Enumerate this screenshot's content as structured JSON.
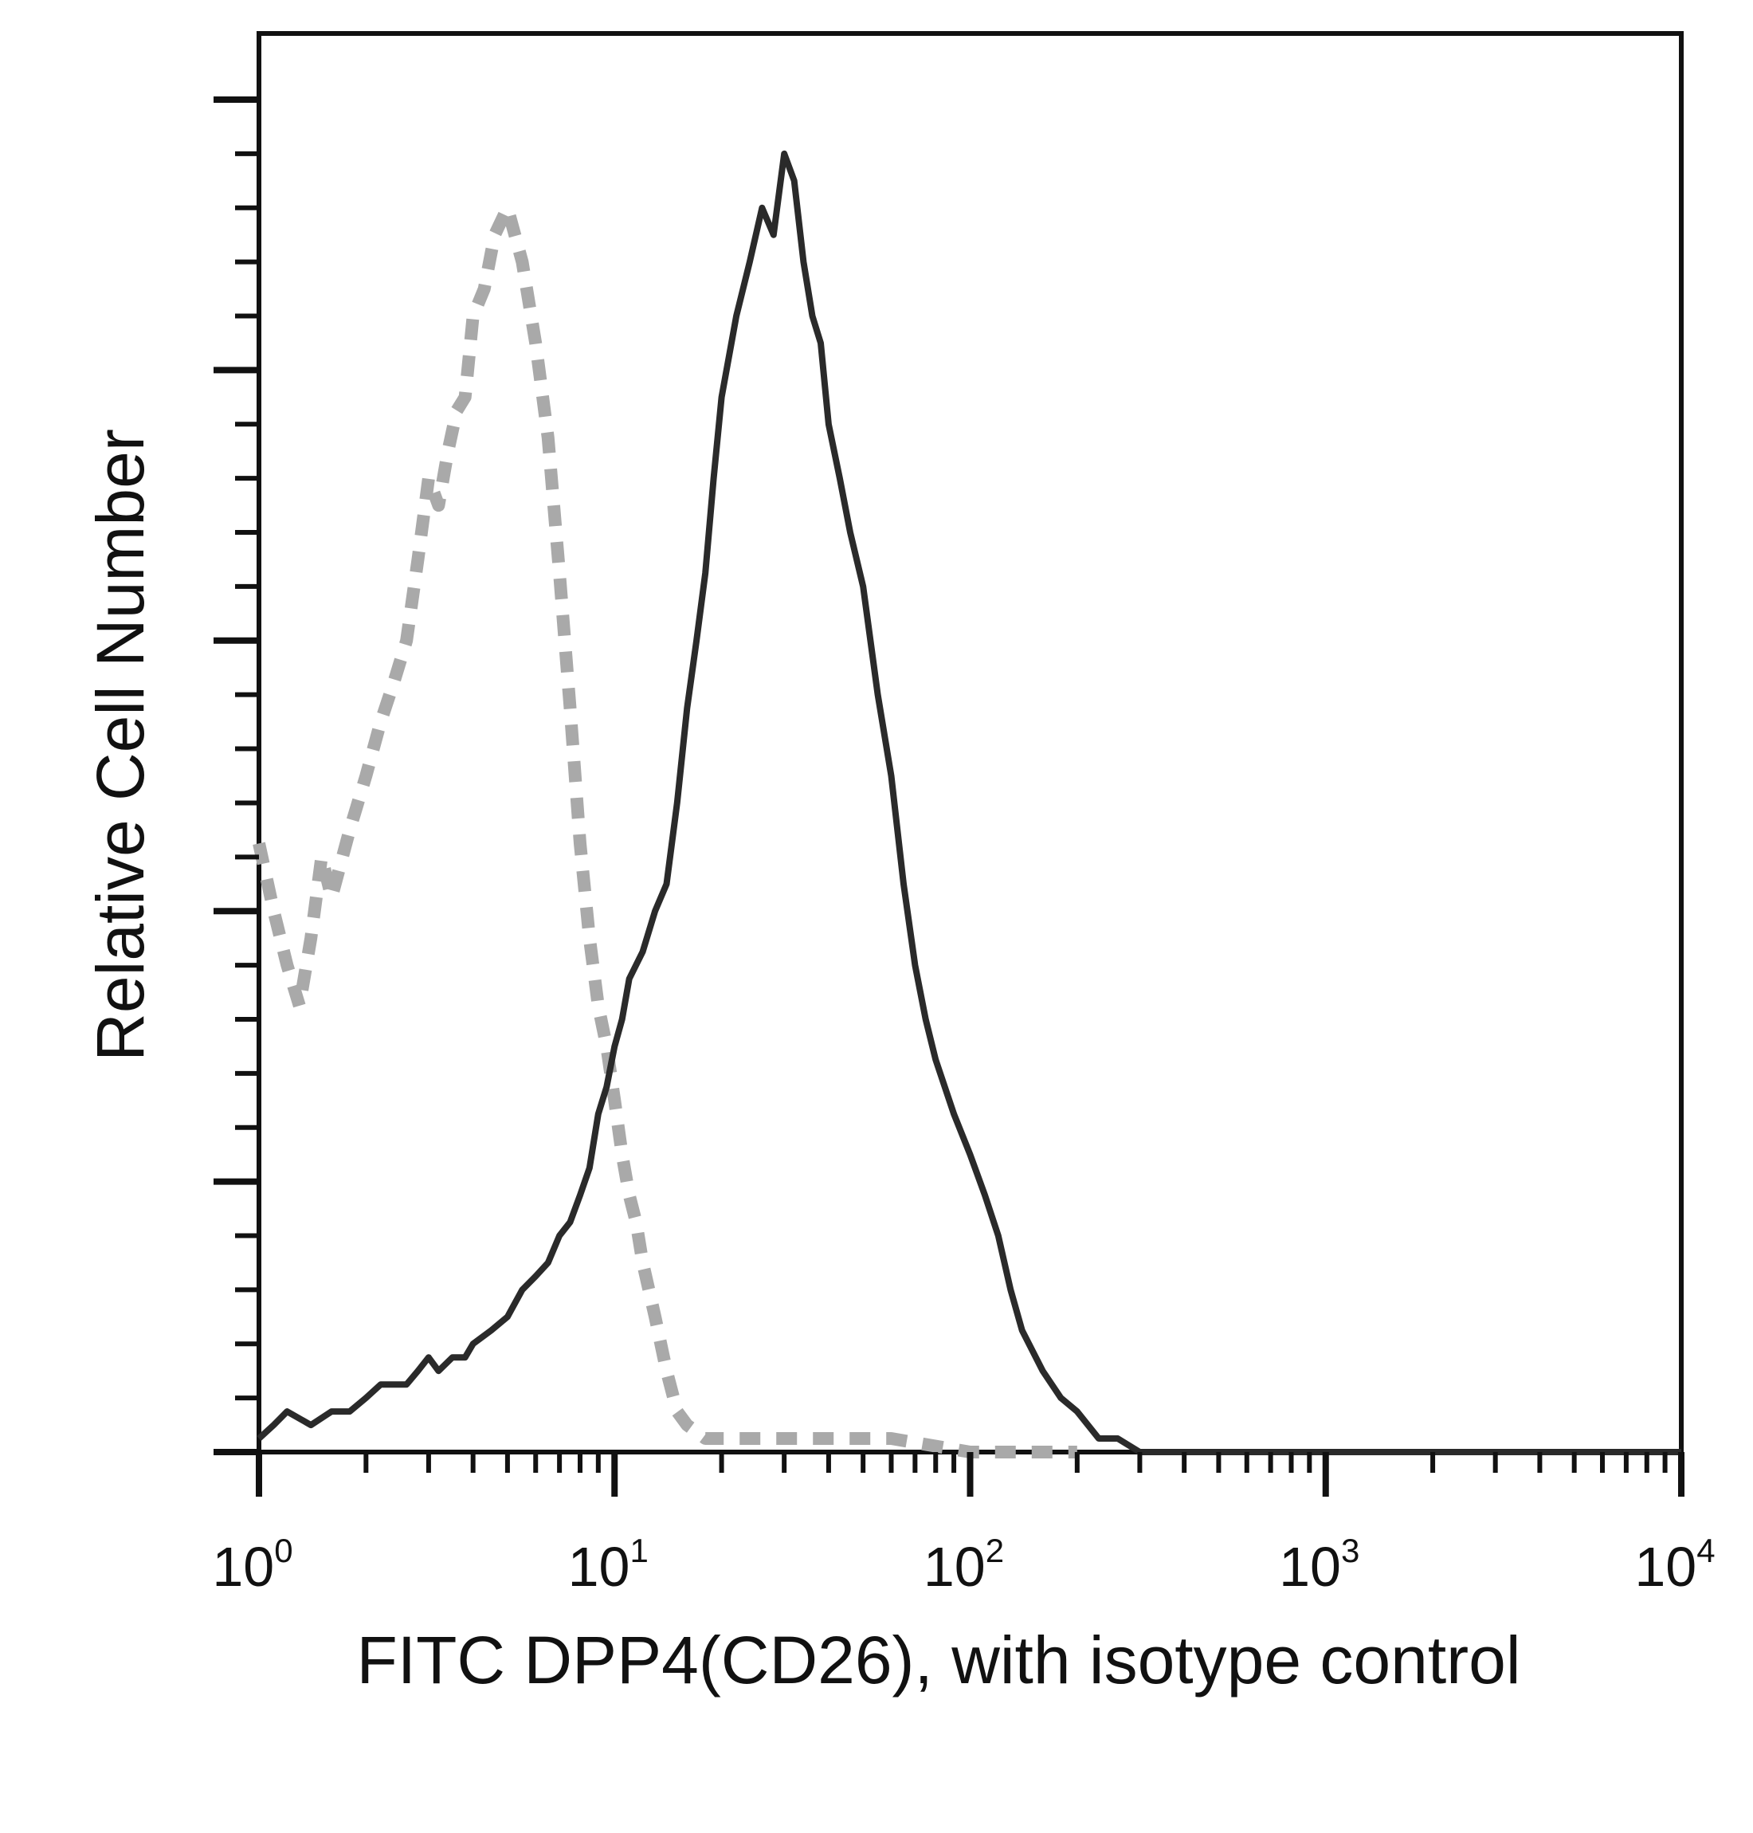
{
  "chart_data": {
    "type": "histogram",
    "x_scale": "log",
    "xlim": [
      1,
      10000
    ],
    "ylim": [
      0,
      1
    ],
    "xlabel": "FITC DPP4(CD26), with isotype control",
    "ylabel": "Relative Cell Number",
    "x_ticks": [
      {
        "value": 1,
        "base": "10",
        "exp": "0"
      },
      {
        "value": 10,
        "base": "10",
        "exp": "1"
      },
      {
        "value": 100,
        "base": "10",
        "exp": "2"
      },
      {
        "value": 1000,
        "base": "10",
        "exp": "3"
      },
      {
        "value": 10000,
        "base": "10",
        "exp": "4"
      }
    ],
    "y_ticks_major": [
      0,
      0.2,
      0.4,
      0.6,
      0.8,
      1.0
    ],
    "y_ticks_minor_per_major": 4,
    "grid": false,
    "legend": "none",
    "series": [
      {
        "style": "dashed",
        "color": "#a9a9a9",
        "x": [
          1.0,
          1.1,
          1.2,
          1.3,
          1.4,
          1.5,
          1.6,
          1.8,
          2.0,
          2.2,
          2.4,
          2.6,
          2.8,
          3.0,
          3.2,
          3.4,
          3.6,
          3.8,
          4.0,
          4.3,
          4.6,
          5.0,
          5.5,
          6.0,
          6.5,
          7.0,
          7.5,
          8.0,
          8.5,
          9.0,
          9.5,
          10.0,
          10.5,
          11.0,
          11.5,
          12.0,
          13.0,
          14.0,
          15.0,
          16.0,
          18.0,
          20.0,
          25.0,
          30.0,
          40.0,
          60.0,
          100.0,
          200.0
        ],
        "y": [
          0.45,
          0.4,
          0.36,
          0.33,
          0.38,
          0.44,
          0.41,
          0.46,
          0.5,
          0.54,
          0.57,
          0.6,
          0.66,
          0.72,
          0.7,
          0.74,
          0.77,
          0.78,
          0.84,
          0.86,
          0.9,
          0.92,
          0.88,
          0.82,
          0.75,
          0.65,
          0.55,
          0.45,
          0.38,
          0.33,
          0.3,
          0.26,
          0.22,
          0.19,
          0.17,
          0.14,
          0.1,
          0.06,
          0.03,
          0.02,
          0.01,
          0.01,
          0.01,
          0.01,
          0.01,
          0.01,
          0.0,
          0.0
        ]
      },
      {
        "style": "solid",
        "color": "#2a2a2a",
        "x": [
          1.0,
          1.1,
          1.2,
          1.4,
          1.6,
          1.8,
          2.0,
          2.2,
          2.4,
          2.6,
          2.8,
          3.0,
          3.2,
          3.5,
          3.8,
          4.0,
          4.5,
          5.0,
          5.5,
          6.0,
          6.5,
          7.0,
          7.5,
          8.0,
          8.5,
          9.0,
          9.5,
          10.0,
          10.5,
          11.0,
          12.0,
          13.0,
          14.0,
          15.0,
          16.0,
          17.0,
          18.0,
          19.0,
          20.0,
          22.0,
          24.0,
          26.0,
          28.0,
          30.0,
          32.0,
          34.0,
          36.0,
          38.0,
          40.0,
          43.0,
          46.0,
          50.0,
          55.0,
          60.0,
          65.0,
          70.0,
          75.0,
          80.0,
          90.0,
          100.0,
          110.0,
          120.0,
          130.0,
          140.0,
          160.0,
          180.0,
          200.0,
          230.0,
          260.0,
          300.0,
          400.0,
          600.0,
          1000.0,
          2000.0,
          5000.0,
          10000.0
        ],
        "y": [
          0.01,
          0.02,
          0.03,
          0.02,
          0.03,
          0.03,
          0.04,
          0.05,
          0.05,
          0.05,
          0.06,
          0.07,
          0.06,
          0.07,
          0.07,
          0.08,
          0.09,
          0.1,
          0.12,
          0.13,
          0.14,
          0.16,
          0.17,
          0.19,
          0.21,
          0.25,
          0.27,
          0.3,
          0.32,
          0.35,
          0.37,
          0.4,
          0.42,
          0.48,
          0.55,
          0.6,
          0.65,
          0.72,
          0.78,
          0.84,
          0.88,
          0.92,
          0.9,
          0.96,
          0.94,
          0.88,
          0.84,
          0.82,
          0.76,
          0.72,
          0.68,
          0.64,
          0.56,
          0.5,
          0.42,
          0.36,
          0.32,
          0.29,
          0.25,
          0.22,
          0.19,
          0.16,
          0.12,
          0.09,
          0.06,
          0.04,
          0.03,
          0.01,
          0.01,
          0.0,
          0.0,
          0.0,
          0.0,
          0.0,
          0.0,
          0.0
        ]
      }
    ]
  },
  "ui": {
    "axis_color": "#111111"
  }
}
